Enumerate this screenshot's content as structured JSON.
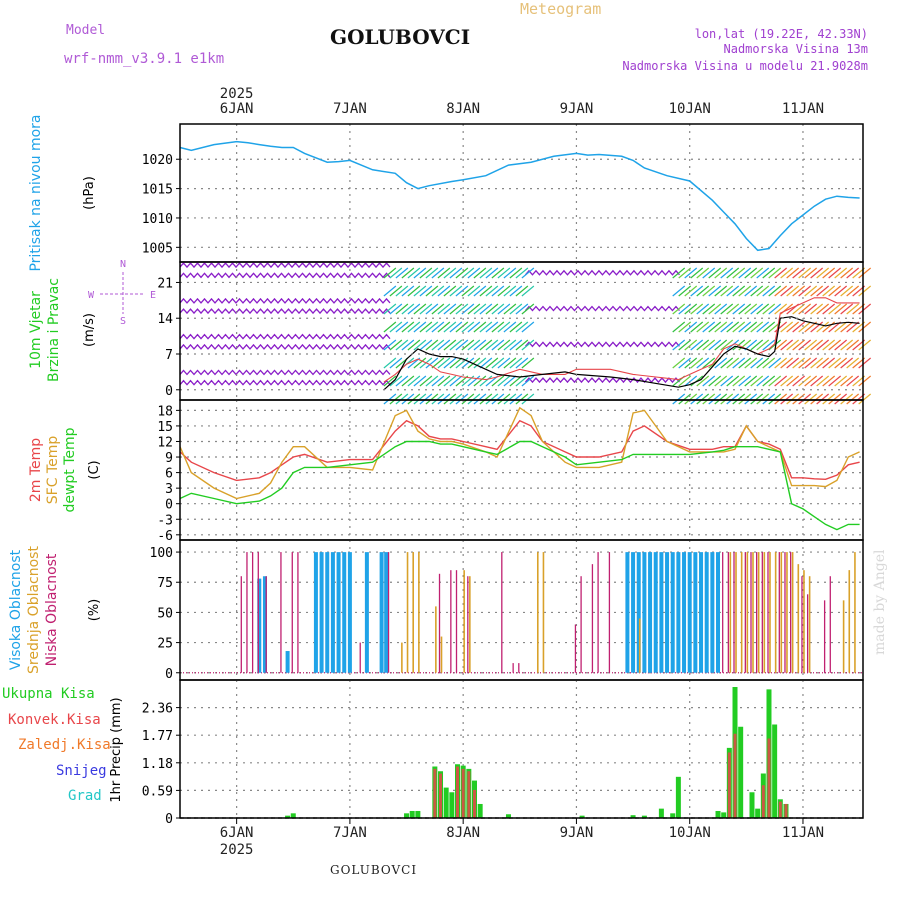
{
  "header": {
    "model_label": "Model",
    "model_value": "wrf-nmm_v3.9.1 e1km",
    "station": "GOLUBOVCI",
    "title": "Meteogram",
    "lonlat": "lon,lat (19.22E, 42.33N)",
    "altitude": "Nadmorska Visina 13m",
    "model_altitude": "Nadmorska Visina u modelu 21.9028m",
    "footer_station": "GOLUBOVCI",
    "watermark": "made by Angel"
  },
  "colors": {
    "pressure": "#1fa3e8",
    "temp2m": "#e8464a",
    "sfc": "#d9a12a",
    "dew": "#22cc22",
    "high_cloud": "#1fa3e8",
    "mid_cloud": "#d9a12a",
    "low_cloud": "#c02070",
    "total_precip": "#22cc22",
    "conv_precip": "#e8464a",
    "frozen_precip": "#f07a2a",
    "snow": "#3a3ae0",
    "graupel": "#22c7c7",
    "wind_calm": "#8a1ec8",
    "model_label": "#b05ad6",
    "title": "#e6c17a",
    "right_info": "#a040d0"
  },
  "chart_data": [
    {
      "id": "pressure",
      "type": "line",
      "ylabel_main": "Pritisak na nivou mora",
      "ylabel_unit": "(hPa)",
      "yticks": [
        1005,
        1010,
        1015,
        1020
      ],
      "ylim": [
        1002.5,
        1026
      ],
      "x_unit": "day of January 2025 (fractional)",
      "x": [
        5.5,
        5.6,
        5.8,
        6.0,
        6.1,
        6.2,
        6.3,
        6.4,
        6.5,
        6.6,
        6.8,
        6.9,
        7.0,
        7.2,
        7.4,
        7.5,
        7.6,
        7.7,
        7.9,
        8.0,
        8.2,
        8.4,
        8.6,
        8.8,
        9.0,
        9.1,
        9.2,
        9.4,
        9.5,
        9.6,
        9.8,
        10.0,
        10.2,
        10.3,
        10.4,
        10.5,
        10.6,
        10.7,
        10.8,
        10.9,
        11.0,
        11.1,
        11.2,
        11.3,
        11.4,
        11.5
      ],
      "y": [
        1022,
        1021.5,
        1022.5,
        1023,
        1022.8,
        1022.5,
        1022.2,
        1022,
        1022,
        1021,
        1019.5,
        1019.6,
        1019.8,
        1018.2,
        1017.6,
        1016,
        1015,
        1015.5,
        1016.2,
        1016.5,
        1017.2,
        1019,
        1019.5,
        1020.5,
        1021,
        1020.7,
        1020.8,
        1020.5,
        1019.8,
        1018.5,
        1017.2,
        1016.3,
        1013,
        1011,
        1009,
        1006.5,
        1004.5,
        1004.8,
        1007,
        1009,
        1010.5,
        1012,
        1013.2,
        1013.7,
        1013.5,
        1013.4
      ]
    },
    {
      "id": "wind",
      "type": "line",
      "ylabel_main": "10m Vjetar",
      "ylabel_sub": "Brzina i Pravac",
      "ylabel_unit": "(m/s)",
      "compass": {
        "n": "N",
        "s": "S",
        "e": "E",
        "w": "W"
      },
      "yticks": [
        0,
        7,
        14,
        21
      ],
      "ylim": [
        -2,
        25
      ],
      "x": [
        7.3,
        7.4,
        7.5,
        7.6,
        7.7,
        7.8,
        7.9,
        8.0,
        8.2,
        8.3,
        8.5,
        8.7,
        8.9,
        9.0,
        9.3,
        9.5,
        9.9,
        10.0,
        10.1,
        10.2,
        10.3,
        10.4,
        10.5,
        10.6,
        10.7,
        10.75,
        10.8,
        10.9,
        11.0,
        11.1,
        11.2,
        11.3,
        11.4,
        11.5
      ],
      "y": [
        0,
        2,
        6,
        8,
        7,
        6.5,
        6.5,
        6,
        4,
        3,
        2.5,
        3,
        3.5,
        3,
        2.5,
        2,
        0.5,
        1,
        2,
        4.5,
        7,
        8.5,
        8,
        7,
        6.5,
        7.5,
        14,
        14.3,
        13.5,
        13,
        12.5,
        13,
        13.2,
        13
      ],
      "series_names": [
        "wind speed",
        "gust"
      ],
      "gust": [
        1.5,
        3,
        5,
        6,
        5,
        3.5,
        3,
        2.5,
        2,
        2.5,
        4,
        3,
        3,
        4,
        4,
        3,
        2,
        3,
        4,
        5,
        8,
        9,
        8,
        7,
        8,
        9,
        15,
        16,
        17,
        18,
        18,
        17,
        17,
        17
      ]
    },
    {
      "id": "temperature",
      "type": "line",
      "ylabel_lines": [
        "2m Temp",
        "SFC Temp",
        "dewpt Temp"
      ],
      "ylabel_unit": "(C)",
      "yticks": [
        -6,
        -3,
        0,
        3,
        6,
        9,
        12,
        15,
        18
      ],
      "ylim": [
        -7,
        20
      ],
      "x": [
        5.5,
        5.6,
        5.8,
        6.0,
        6.2,
        6.3,
        6.4,
        6.5,
        6.6,
        6.8,
        7.0,
        7.2,
        7.4,
        7.5,
        7.6,
        7.7,
        7.8,
        7.9,
        8.0,
        8.2,
        8.3,
        8.5,
        8.6,
        8.7,
        8.9,
        9.0,
        9.2,
        9.4,
        9.5,
        9.6,
        9.8,
        10.0,
        10.2,
        10.3,
        10.4,
        10.5,
        10.6,
        10.7,
        10.8,
        10.9,
        11.0,
        11.1,
        11.2,
        11.3,
        11.4,
        11.5
      ],
      "series": [
        {
          "name": "2m Temp",
          "values": [
            10,
            8,
            6,
            4.5,
            5,
            6,
            7.5,
            9,
            9.5,
            8,
            8.5,
            8.5,
            14,
            16,
            15,
            13,
            12.5,
            12.5,
            12,
            11,
            10.5,
            16,
            15,
            12,
            10,
            9,
            9,
            10,
            14,
            15,
            12,
            10.5,
            10.5,
            11,
            11,
            15,
            12,
            11.5,
            10.5,
            5,
            5,
            4.8,
            4.7,
            5.5,
            7.5,
            8
          ]
        },
        {
          "name": "SFC Temp",
          "values": [
            11,
            6,
            3,
            1,
            2,
            4,
            8,
            11,
            11,
            7,
            7,
            6.5,
            17,
            18,
            14,
            12.5,
            12,
            12,
            11.5,
            10,
            9,
            18.5,
            17,
            12,
            8,
            7,
            7,
            8,
            17.5,
            18,
            12,
            10,
            10,
            10,
            10.5,
            15,
            12,
            11,
            10,
            3.5,
            3.5,
            3.5,
            3.3,
            4.5,
            9,
            10
          ]
        },
        {
          "name": "dewpt Temp",
          "values": [
            1,
            2,
            1,
            0,
            0.5,
            1.5,
            3,
            6,
            7,
            7,
            7.5,
            8,
            11,
            12,
            12,
            12,
            11.5,
            11.5,
            11,
            10,
            9.5,
            12,
            12,
            11,
            9,
            7.5,
            8,
            8.5,
            9.5,
            9.5,
            9.5,
            9.5,
            10,
            10.3,
            11,
            11,
            11,
            10.5,
            10,
            0,
            -1,
            -2.5,
            -4,
            -5,
            -4,
            -4
          ]
        }
      ]
    },
    {
      "id": "clouds",
      "type": "bar",
      "ylabel_lines": [
        "Visoka Oblacnost",
        "Srednja Oblacnost",
        "Niska Oblacnost"
      ],
      "ylabel_unit": "(%)",
      "yticks": [
        0,
        25,
        50,
        75,
        100
      ],
      "ylim": [
        -6,
        110
      ],
      "series": [
        {
          "name": "Visoka Oblacnost",
          "bars": [
            [
              6.2,
              78
            ],
            [
              6.25,
              80
            ],
            [
              6.45,
              18
            ],
            [
              6.7,
              100
            ],
            [
              6.75,
              100
            ],
            [
              6.8,
              100
            ],
            [
              6.85,
              100
            ],
            [
              6.9,
              100
            ],
            [
              6.95,
              100
            ],
            [
              7.0,
              100
            ],
            [
              7.15,
              100
            ],
            [
              7.28,
              100
            ],
            [
              7.32,
              100
            ],
            [
              9.45,
              100
            ],
            [
              9.5,
              100
            ],
            [
              9.55,
              100
            ],
            [
              9.6,
              100
            ],
            [
              9.65,
              100
            ],
            [
              9.7,
              100
            ],
            [
              9.75,
              100
            ],
            [
              9.8,
              100
            ],
            [
              9.85,
              100
            ],
            [
              9.9,
              100
            ],
            [
              9.95,
              100
            ],
            [
              10.0,
              100
            ],
            [
              10.05,
              100
            ],
            [
              10.1,
              100
            ],
            [
              10.15,
              100
            ],
            [
              10.2,
              100
            ],
            [
              10.25,
              100
            ]
          ]
        },
        {
          "name": "Srednja Oblacnost",
          "bars": [
            [
              7.45,
              25
            ],
            [
              7.5,
              100
            ],
            [
              7.55,
              100
            ],
            [
              7.6,
              100
            ],
            [
              7.75,
              55
            ],
            [
              7.8,
              30
            ],
            [
              8.0,
              85
            ],
            [
              8.05,
              80
            ],
            [
              8.65,
              100
            ],
            [
              8.7,
              100
            ],
            [
              9.55,
              45
            ],
            [
              10.35,
              100
            ],
            [
              10.4,
              100
            ],
            [
              10.45,
              100
            ],
            [
              10.5,
              100
            ],
            [
              10.55,
              100
            ],
            [
              10.6,
              100
            ],
            [
              10.65,
              100
            ],
            [
              10.7,
              100
            ],
            [
              10.75,
              100
            ],
            [
              10.8,
              100
            ],
            [
              10.85,
              100
            ],
            [
              10.9,
              100
            ],
            [
              10.95,
              90
            ],
            [
              11.0,
              85
            ],
            [
              11.05,
              80
            ],
            [
              11.35,
              60
            ],
            [
              11.4,
              85
            ],
            [
              11.45,
              100
            ]
          ]
        },
        {
          "name": "Niska Oblacnost",
          "bars": [
            [
              6.05,
              80
            ],
            [
              6.1,
              100
            ],
            [
              6.15,
              100
            ],
            [
              6.2,
              100
            ],
            [
              6.27,
              80
            ],
            [
              6.4,
              100
            ],
            [
              6.5,
              100
            ],
            [
              6.55,
              100
            ],
            [
              7.1,
              25
            ],
            [
              7.35,
              100
            ],
            [
              7.8,
              82
            ],
            [
              7.9,
              85
            ],
            [
              7.95,
              85
            ],
            [
              8.05,
              80
            ],
            [
              8.35,
              100
            ],
            [
              8.45,
              8
            ],
            [
              8.5,
              8
            ],
            [
              9.0,
              40
            ],
            [
              9.05,
              80
            ],
            [
              9.15,
              90
            ],
            [
              9.2,
              100
            ],
            [
              9.3,
              100
            ],
            [
              10.3,
              100
            ],
            [
              10.35,
              100
            ],
            [
              10.4,
              100
            ],
            [
              10.5,
              100
            ],
            [
              10.55,
              100
            ],
            [
              10.6,
              100
            ],
            [
              10.65,
              100
            ],
            [
              10.7,
              100
            ],
            [
              10.8,
              100
            ],
            [
              10.85,
              100
            ],
            [
              10.9,
              100
            ],
            [
              11.0,
              80
            ],
            [
              11.05,
              65
            ],
            [
              11.2,
              60
            ],
            [
              11.25,
              80
            ]
          ]
        }
      ]
    },
    {
      "id": "precipitation",
      "type": "bar",
      "ylabel_main": "1hr Precip (mm)",
      "legend": [
        "Ukupna Kisa",
        "Konvek.Kisa",
        "Zaledj.Kisa",
        "Snijeg",
        "Grad"
      ],
      "yticks": [
        0,
        0.59,
        1.18,
        1.77,
        2.36
      ],
      "ylim": [
        0,
        2.95
      ],
      "series": [
        {
          "name": "Ukupna Kisa",
          "bars": [
            [
              6.45,
              0.05
            ],
            [
              6.5,
              0.1
            ],
            [
              7.5,
              0.1
            ],
            [
              7.55,
              0.15
            ],
            [
              7.6,
              0.15
            ],
            [
              7.75,
              1.1
            ],
            [
              7.8,
              1.0
            ],
            [
              7.85,
              0.65
            ],
            [
              7.9,
              0.55
            ],
            [
              7.95,
              1.15
            ],
            [
              8.0,
              1.12
            ],
            [
              8.05,
              1.05
            ],
            [
              8.1,
              0.8
            ],
            [
              8.15,
              0.3
            ],
            [
              8.4,
              0.08
            ],
            [
              9.05,
              0.05
            ],
            [
              9.5,
              0.06
            ],
            [
              9.6,
              0.05
            ],
            [
              9.75,
              0.2
            ],
            [
              9.85,
              0.1
            ],
            [
              9.9,
              0.88
            ],
            [
              10.25,
              0.15
            ],
            [
              10.3,
              0.12
            ],
            [
              10.35,
              1.5
            ],
            [
              10.4,
              2.8
            ],
            [
              10.45,
              1.95
            ],
            [
              10.55,
              0.55
            ],
            [
              10.6,
              0.2
            ],
            [
              10.65,
              0.95
            ],
            [
              10.7,
              2.75
            ],
            [
              10.75,
              2.0
            ],
            [
              10.8,
              0.4
            ],
            [
              10.85,
              0.3
            ]
          ]
        },
        {
          "name": "Konvek.Kisa",
          "bars": [
            [
              7.75,
              1.05
            ],
            [
              7.8,
              0.95
            ],
            [
              7.95,
              1.1
            ],
            [
              8.0,
              1.05
            ],
            [
              8.05,
              1.0
            ],
            [
              8.1,
              0.6
            ],
            [
              10.35,
              1.4
            ],
            [
              10.4,
              1.8
            ],
            [
              10.65,
              0.7
            ],
            [
              10.7,
              1.7
            ],
            [
              10.8,
              0.35
            ],
            [
              10.85,
              0.3
            ]
          ]
        }
      ]
    }
  ],
  "xaxis": {
    "year": "2025",
    "ticks": [
      {
        "x": 6.0,
        "label": "6JAN"
      },
      {
        "x": 7.0,
        "label": "7JAN"
      },
      {
        "x": 8.0,
        "label": "8JAN"
      },
      {
        "x": 9.0,
        "label": "9JAN"
      },
      {
        "x": 10.0,
        "label": "10JAN"
      },
      {
        "x": 11.0,
        "label": "11JAN"
      }
    ],
    "xlim": [
      5.5,
      11.53
    ]
  }
}
